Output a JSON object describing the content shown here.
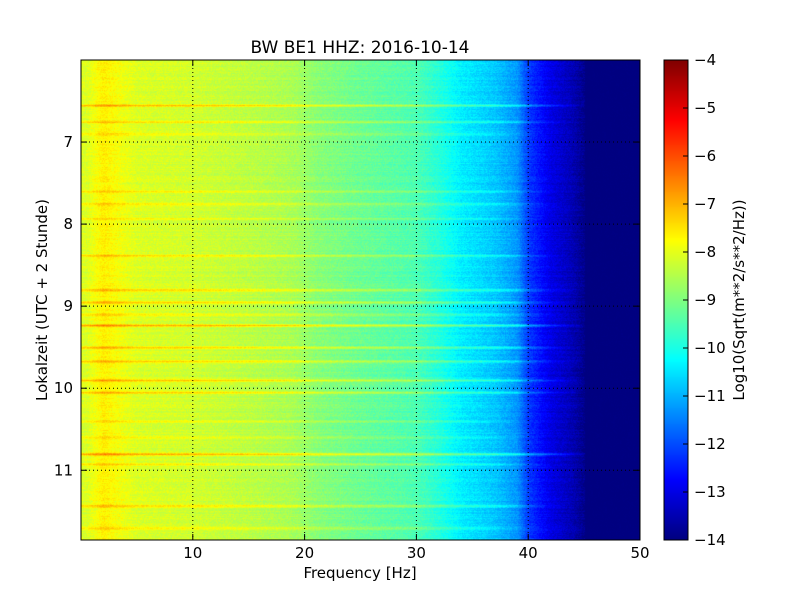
{
  "chart_data": {
    "type": "heatmap",
    "title": "BW BE1 HHZ: 2016-10-14",
    "xlabel": "Frequency [Hz]",
    "ylabel": "Lokalzeit (UTC + 2 Stunde)",
    "xlim": [
      0,
      50
    ],
    "ylim": [
      11.85,
      6.0
    ],
    "x_ticks": [
      10,
      20,
      30,
      40,
      50
    ],
    "y_ticks": [
      7,
      8,
      9,
      10,
      11
    ],
    "grid": true,
    "colormap": "jet",
    "colorbar": {
      "label": "Log10(Sqrt(m**2/s**2/Hz))",
      "range": [
        -14,
        -4
      ],
      "ticks": [
        -4,
        -5,
        -6,
        -7,
        -8,
        -9,
        -10,
        -11,
        -12,
        -13,
        -14
      ]
    },
    "spectrum_profile": [
      {
        "f": 0.5,
        "value": -8.1
      },
      {
        "f": 2,
        "value": -7.6
      },
      {
        "f": 3,
        "value": -7.8
      },
      {
        "f": 5,
        "value": -8.1
      },
      {
        "f": 10,
        "value": -8.2
      },
      {
        "f": 15,
        "value": -8.4
      },
      {
        "f": 19,
        "value": -8.6
      },
      {
        "f": 21,
        "value": -8.9
      },
      {
        "f": 25,
        "value": -9.2
      },
      {
        "f": 30,
        "value": -9.5
      },
      {
        "f": 32,
        "value": -9.9
      },
      {
        "f": 34,
        "value": -10.4
      },
      {
        "f": 37,
        "value": -10.8
      },
      {
        "f": 39,
        "value": -11.3
      },
      {
        "f": 40,
        "value": -12.2
      },
      {
        "f": 42,
        "value": -13.0
      },
      {
        "f": 44,
        "value": -13.5
      },
      {
        "f": 45,
        "value": -13.9
      },
      {
        "f": 50,
        "value": -14.0
      }
    ],
    "bands": [
      {
        "time": 6.55,
        "offset": 1.0,
        "fmax": 46
      },
      {
        "time": 6.75,
        "offset": 0.8,
        "fmax": 45
      },
      {
        "time": 6.9,
        "offset": 0.5,
        "fmax": 42
      },
      {
        "time": 7.6,
        "offset": 0.5,
        "fmax": 43
      },
      {
        "time": 7.75,
        "offset": 0.7,
        "fmax": 44
      },
      {
        "time": 7.93,
        "offset": 0.5,
        "fmax": 42
      },
      {
        "time": 8.38,
        "offset": 0.8,
        "fmax": 44
      },
      {
        "time": 8.8,
        "offset": 0.9,
        "fmax": 45
      },
      {
        "time": 8.95,
        "offset": 0.8,
        "fmax": 44
      },
      {
        "time": 9.1,
        "offset": 0.5,
        "fmax": 43
      },
      {
        "time": 9.23,
        "offset": 1.3,
        "fmax": 46
      },
      {
        "time": 9.5,
        "offset": 0.9,
        "fmax": 45
      },
      {
        "time": 9.67,
        "offset": 0.8,
        "fmax": 45
      },
      {
        "time": 9.9,
        "offset": 0.9,
        "fmax": 45
      },
      {
        "time": 10.05,
        "offset": 0.9,
        "fmax": 45
      },
      {
        "time": 10.4,
        "offset": 0.4,
        "fmax": 40
      },
      {
        "time": 10.6,
        "offset": 0.5,
        "fmax": 41
      },
      {
        "time": 10.8,
        "offset": 1.4,
        "fmax": 47
      },
      {
        "time": 10.92,
        "offset": 0.6,
        "fmax": 42
      },
      {
        "time": 11.43,
        "offset": 0.9,
        "fmax": 44
      },
      {
        "time": 11.7,
        "offset": 0.5,
        "fmax": 41
      }
    ]
  }
}
